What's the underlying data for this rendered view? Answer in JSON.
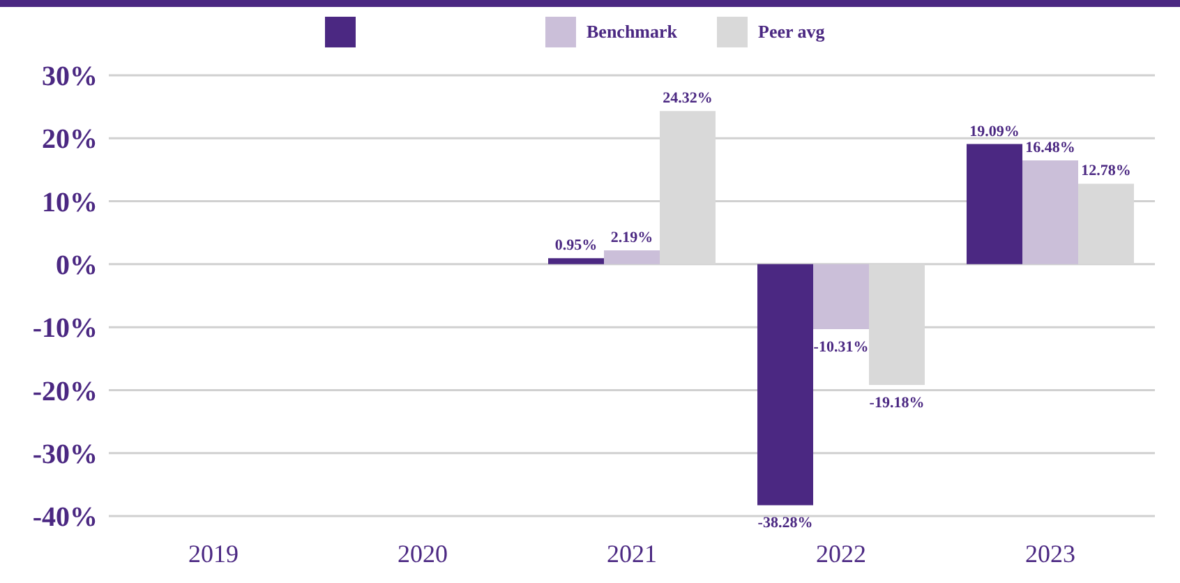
{
  "chart_data": {
    "type": "bar",
    "categories": [
      "2019",
      "2020",
      "2021",
      "2022",
      "2023"
    ],
    "series": [
      {
        "color": "#4b2882",
        "values": [
          null,
          null,
          0.95,
          -38.28,
          19.09
        ],
        "value_labels": [
          null,
          null,
          "0.95%",
          "-38.28%",
          "19.09%"
        ]
      },
      {
        "name": "Benchmark",
        "color": "#cbbfd9",
        "values": [
          null,
          null,
          2.19,
          -10.31,
          16.48
        ],
        "value_labels": [
          null,
          null,
          "2.19%",
          "-10.31%",
          "16.48%"
        ]
      },
      {
        "name": "Peer avg",
        "color": "#d9d9d9",
        "values": [
          null,
          null,
          24.32,
          -19.18,
          12.78
        ],
        "value_labels": [
          null,
          null,
          "24.32%",
          "-19.18%",
          "12.78%"
        ]
      }
    ],
    "ylim": [
      -40,
      30
    ],
    "yticks": [
      {
        "value": -40,
        "label": "-40%"
      },
      {
        "value": -30,
        "label": "-30%"
      },
      {
        "value": -20,
        "label": "-20%"
      },
      {
        "value": -10,
        "label": "-10%"
      },
      {
        "value": 0,
        "label": "0%"
      },
      {
        "value": 10,
        "label": "10%"
      },
      {
        "value": 20,
        "label": "20%"
      },
      {
        "value": 30,
        "label": "30%"
      }
    ],
    "grid": "y",
    "legend": "top"
  }
}
